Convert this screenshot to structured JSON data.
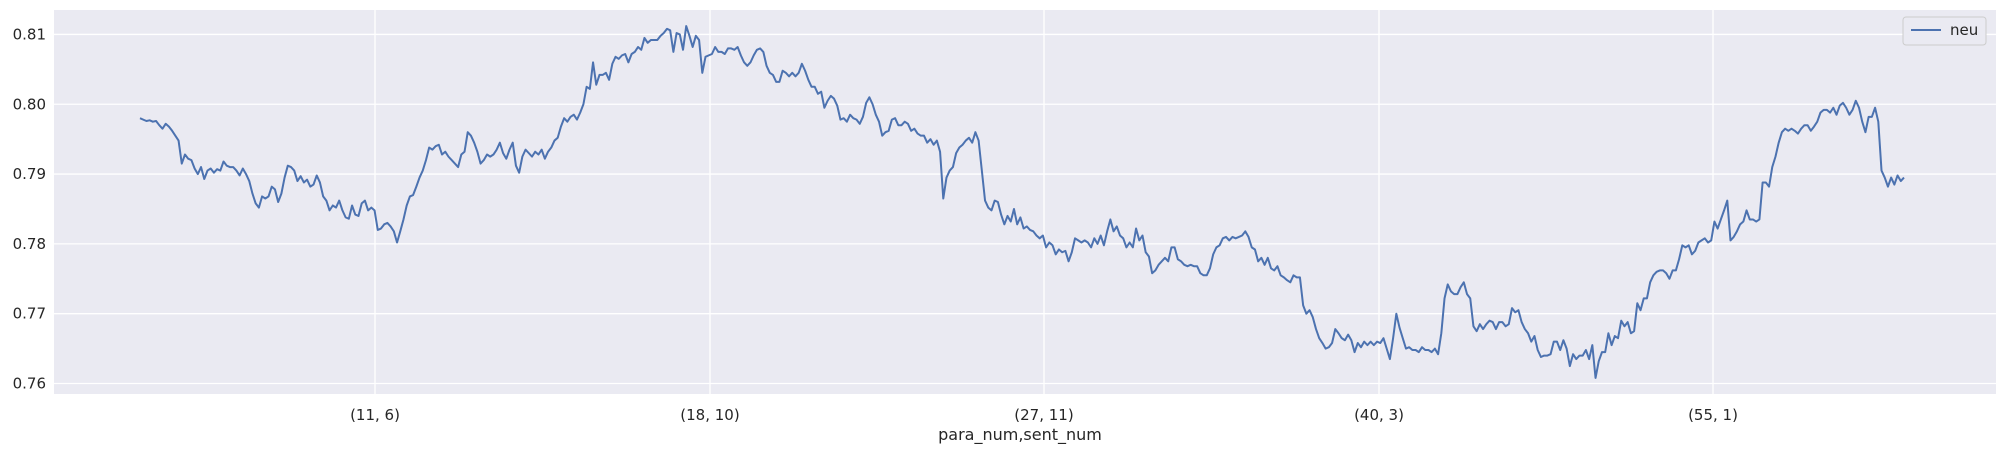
{
  "chart_data": {
    "type": "line",
    "title": "",
    "xlabel": "para_num,sent_num",
    "ylabel": "",
    "x_tick_labels": [
      "(11, 6)",
      "(18, 10)",
      "(27, 11)",
      "(40, 3)",
      "(55, 1)"
    ],
    "y_ticks": [
      0.76,
      0.77,
      0.78,
      0.79,
      0.8,
      0.81
    ],
    "y_tick_labels": [
      "0.76",
      "0.77",
      "0.78",
      "0.79",
      "0.80",
      "0.81"
    ],
    "ylim": [
      0.7585,
      0.8135
    ],
    "grid": true,
    "legend": {
      "placement": "top-right",
      "entries": [
        "neu"
      ]
    },
    "series": [
      {
        "name": "neu",
        "color": "#4c72b0",
        "values": [
          0.798,
          0.7978,
          0.7976,
          0.7977,
          0.7975,
          0.7976,
          0.797,
          0.7965,
          0.7972,
          0.7968,
          0.7962,
          0.7955,
          0.7948,
          0.7915,
          0.7928,
          0.7922,
          0.792,
          0.7908,
          0.79,
          0.791,
          0.7893,
          0.7905,
          0.7908,
          0.7902,
          0.7907,
          0.7905,
          0.7918,
          0.7912,
          0.791,
          0.791,
          0.7905,
          0.7898,
          0.7908,
          0.79,
          0.789,
          0.7872,
          0.7858,
          0.7852,
          0.7868,
          0.7865,
          0.7868,
          0.7882,
          0.7878,
          0.786,
          0.7872,
          0.7895,
          0.7912,
          0.791,
          0.7905,
          0.789,
          0.7897,
          0.7888,
          0.7892,
          0.7882,
          0.7885,
          0.7898,
          0.7888,
          0.7868,
          0.7862,
          0.7848,
          0.7855,
          0.7852,
          0.7862,
          0.7848,
          0.7838,
          0.7836,
          0.7855,
          0.7842,
          0.784,
          0.7858,
          0.7862,
          0.7848,
          0.7852,
          0.7848,
          0.782,
          0.7822,
          0.7828,
          0.783,
          0.7825,
          0.7818,
          0.7802,
          0.7818,
          0.7835,
          0.7855,
          0.7868,
          0.787,
          0.7882,
          0.7895,
          0.7905,
          0.792,
          0.7938,
          0.7935,
          0.794,
          0.7942,
          0.7928,
          0.7932,
          0.7925,
          0.792,
          0.7915,
          0.791,
          0.7928,
          0.7932,
          0.796,
          0.7955,
          0.7945,
          0.7932,
          0.7915,
          0.792,
          0.7928,
          0.7925,
          0.7928,
          0.7935,
          0.7945,
          0.793,
          0.7922,
          0.7935,
          0.7945,
          0.7912,
          0.7902,
          0.7925,
          0.7935,
          0.793,
          0.7925,
          0.7932,
          0.7928,
          0.7935,
          0.7922,
          0.7932,
          0.7938,
          0.7948,
          0.7952,
          0.7968,
          0.798,
          0.7975,
          0.7982,
          0.7985,
          0.7978,
          0.7988,
          0.8,
          0.8025,
          0.8022,
          0.806,
          0.8028,
          0.8042,
          0.8042,
          0.8045,
          0.8035,
          0.8058,
          0.8068,
          0.8065,
          0.807,
          0.8072,
          0.806,
          0.8072,
          0.8075,
          0.8082,
          0.8078,
          0.8095,
          0.8088,
          0.8092,
          0.8092,
          0.8092,
          0.8098,
          0.8102,
          0.8108,
          0.8106,
          0.8075,
          0.8102,
          0.81,
          0.8078,
          0.8112,
          0.8098,
          0.8082,
          0.8098,
          0.8092,
          0.8045,
          0.8068,
          0.807,
          0.8072,
          0.8082,
          0.8075,
          0.8075,
          0.8072,
          0.808,
          0.808,
          0.8078,
          0.8082,
          0.807,
          0.806,
          0.8055,
          0.806,
          0.807,
          0.8078,
          0.808,
          0.8075,
          0.8055,
          0.8045,
          0.8042,
          0.8032,
          0.8032,
          0.8048,
          0.8045,
          0.804,
          0.8045,
          0.804,
          0.8045,
          0.8058,
          0.8048,
          0.8035,
          0.8025,
          0.8025,
          0.8015,
          0.8018,
          0.7995,
          0.8005,
          0.8012,
          0.8008,
          0.7998,
          0.7978,
          0.798,
          0.7975,
          0.7985,
          0.798,
          0.7978,
          0.7972,
          0.7982,
          0.8002,
          0.801,
          0.8,
          0.7985,
          0.7975,
          0.7955,
          0.796,
          0.7962,
          0.7978,
          0.798,
          0.797,
          0.797,
          0.7975,
          0.7972,
          0.7962,
          0.7965,
          0.7958,
          0.7955,
          0.7955,
          0.7945,
          0.795,
          0.7942,
          0.7948,
          0.7932,
          0.7865,
          0.7895,
          0.7905,
          0.791,
          0.793,
          0.7938,
          0.7942,
          0.7948,
          0.7952,
          0.7945,
          0.796,
          0.7948,
          0.7905,
          0.7862,
          0.7852,
          0.7848,
          0.7862,
          0.786,
          0.7842,
          0.7828,
          0.784,
          0.7832,
          0.785,
          0.7828,
          0.7838,
          0.7822,
          0.7825,
          0.782,
          0.7818,
          0.7812,
          0.7808,
          0.7812,
          0.7795,
          0.7802,
          0.7798,
          0.7785,
          0.7792,
          0.7788,
          0.779,
          0.7775,
          0.7788,
          0.7808,
          0.7805,
          0.7802,
          0.7805,
          0.7802,
          0.7795,
          0.7808,
          0.78,
          0.7812,
          0.7798,
          0.7818,
          0.7835,
          0.7818,
          0.7825,
          0.7812,
          0.7808,
          0.7795,
          0.7802,
          0.7795,
          0.7822,
          0.7805,
          0.7812,
          0.7788,
          0.7782,
          0.7758,
          0.7762,
          0.777,
          0.7775,
          0.778,
          0.7775,
          0.7795,
          0.7795,
          0.7778,
          0.7775,
          0.777,
          0.7768,
          0.777,
          0.7768,
          0.7768,
          0.7758,
          0.7755,
          0.7755,
          0.7765,
          0.7785,
          0.7795,
          0.7798,
          0.7808,
          0.781,
          0.7805,
          0.781,
          0.7808,
          0.781,
          0.7812,
          0.7818,
          0.781,
          0.7795,
          0.7792,
          0.7775,
          0.778,
          0.777,
          0.778,
          0.7765,
          0.7762,
          0.7768,
          0.7755,
          0.7752,
          0.7748,
          0.7745,
          0.7755,
          0.7752,
          0.7752,
          0.7712,
          0.77,
          0.7705,
          0.7695,
          0.7678,
          0.7665,
          0.7658,
          0.765,
          0.7652,
          0.7658,
          0.7678,
          0.7672,
          0.7665,
          0.7662,
          0.767,
          0.7662,
          0.7645,
          0.7658,
          0.7652,
          0.766,
          0.7655,
          0.766,
          0.7655,
          0.766,
          0.7658,
          0.7665,
          0.765,
          0.7635,
          0.7665,
          0.77,
          0.768,
          0.7665,
          0.765,
          0.7652,
          0.7648,
          0.7648,
          0.7645,
          0.7652,
          0.7648,
          0.7648,
          0.7645,
          0.765,
          0.7642,
          0.7672,
          0.7722,
          0.7742,
          0.7732,
          0.7728,
          0.7728,
          0.7738,
          0.7745,
          0.7728,
          0.7722,
          0.7682,
          0.7675,
          0.7685,
          0.7678,
          0.7685,
          0.769,
          0.7688,
          0.7678,
          0.7688,
          0.7688,
          0.7682,
          0.7685,
          0.7708,
          0.7702,
          0.7705,
          0.7688,
          0.7678,
          0.7672,
          0.766,
          0.7668,
          0.7648,
          0.7638,
          0.764,
          0.764,
          0.7642,
          0.766,
          0.766,
          0.7648,
          0.7662,
          0.765,
          0.7625,
          0.7642,
          0.7635,
          0.764,
          0.764,
          0.7648,
          0.7635,
          0.7655,
          0.7608,
          0.7632,
          0.7645,
          0.7645,
          0.7672,
          0.7655,
          0.7668,
          0.7665,
          0.769,
          0.7682,
          0.7688,
          0.7672,
          0.7675,
          0.7715,
          0.7705,
          0.7722,
          0.7722,
          0.7745,
          0.7755,
          0.776,
          0.7762,
          0.7762,
          0.7758,
          0.775,
          0.7762,
          0.7762,
          0.7778,
          0.7798,
          0.7795,
          0.7798,
          0.7785,
          0.779,
          0.7802,
          0.7805,
          0.7808,
          0.7802,
          0.7805,
          0.7832,
          0.7822,
          0.7835,
          0.7848,
          0.7862,
          0.7805,
          0.781,
          0.7818,
          0.7828,
          0.7832,
          0.7848,
          0.7835,
          0.7835,
          0.7832,
          0.7835,
          0.7888,
          0.7888,
          0.7882,
          0.791,
          0.7925,
          0.7945,
          0.796,
          0.7965,
          0.7962,
          0.7965,
          0.7962,
          0.7958,
          0.7965,
          0.797,
          0.797,
          0.7962,
          0.7968,
          0.7975,
          0.7988,
          0.7992,
          0.7992,
          0.7988,
          0.7995,
          0.7985,
          0.7998,
          0.8002,
          0.7995,
          0.7985,
          0.7992,
          0.8005,
          0.7995,
          0.7975,
          0.796,
          0.7982,
          0.7982,
          0.7995,
          0.7975,
          0.7905,
          0.7895,
          0.7882,
          0.7895,
          0.7885,
          0.7898,
          0.789,
          0.7895
        ]
      }
    ]
  }
}
